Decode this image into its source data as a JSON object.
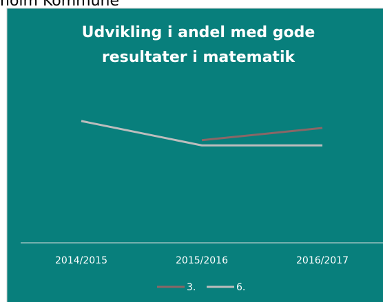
{
  "header": {
    "title": "holm Kommune"
  },
  "chart_data": {
    "type": "line",
    "title": "Udvikling i andel med gode resultater i matematik",
    "categories": [
      "2014/2015",
      "2015/2016",
      "2016/2017"
    ],
    "series": [
      {
        "name": "3.",
        "color": "#8a6666",
        "values": [
          null,
          59,
          66
        ]
      },
      {
        "name": "6.",
        "color": "#bdbdbd",
        "values": [
          70,
          56,
          56
        ]
      }
    ],
    "ylim": [
      0,
      100
    ]
  }
}
